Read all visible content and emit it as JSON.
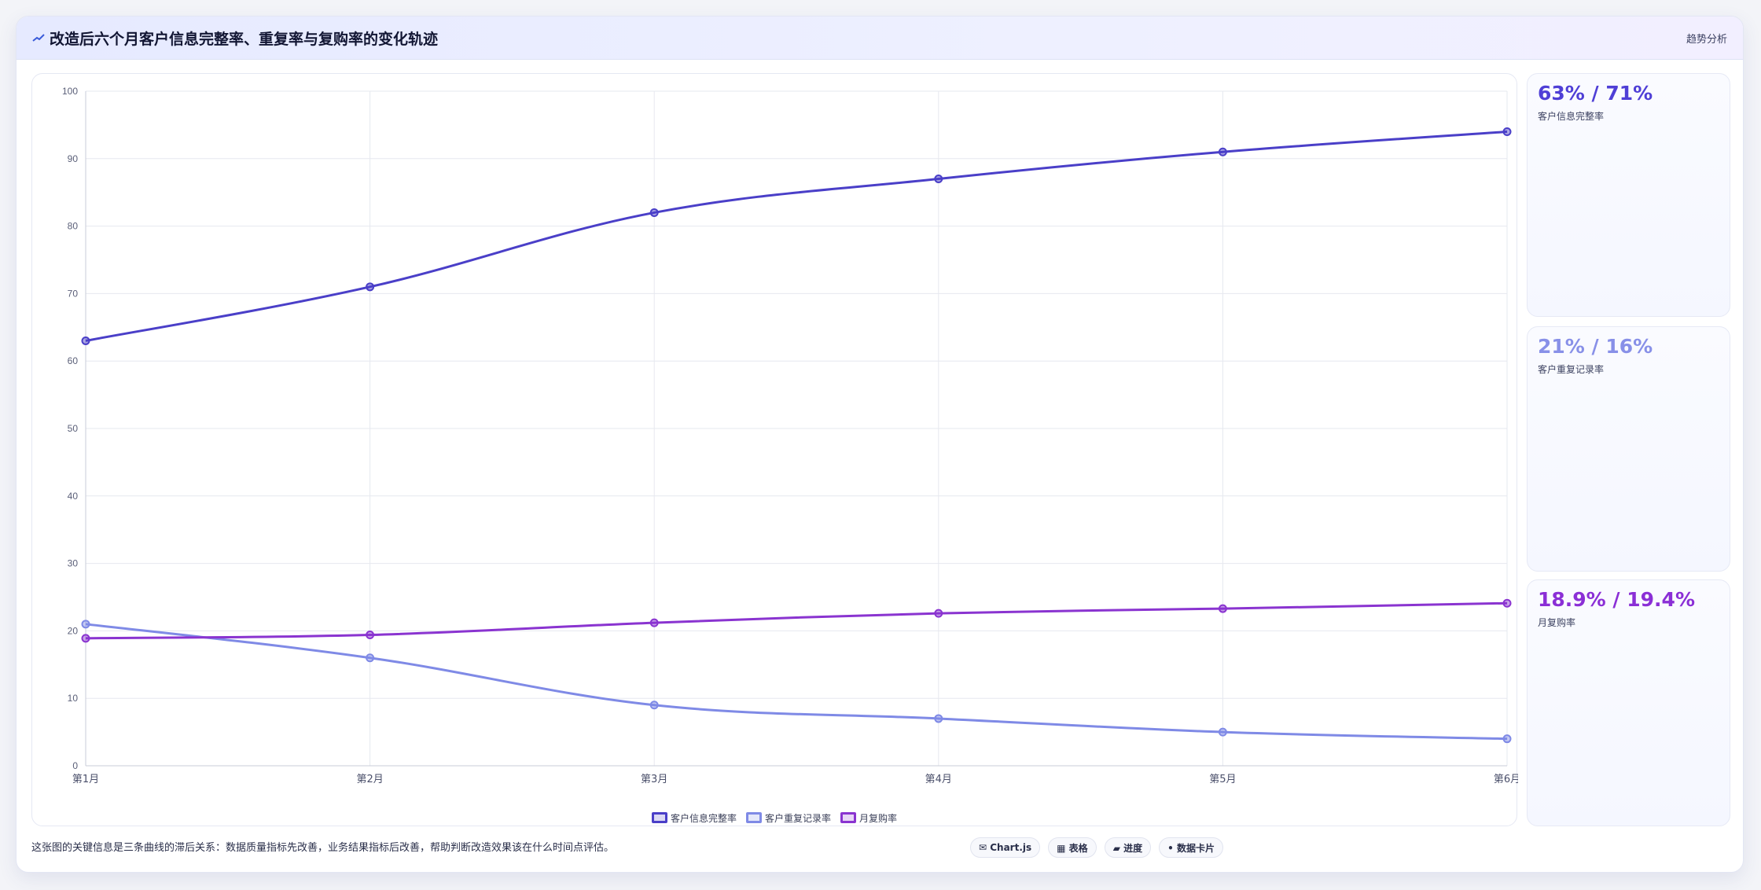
{
  "header": {
    "title": "改造后六个月客户信息完整率、重复率与复购率的变化轨迹",
    "tag": "趋势分析"
  },
  "colors": {
    "completeness": "#4a3fc8",
    "duplicate": "#7f8ae6",
    "repurchase": "#8a34d0"
  },
  "stats": [
    {
      "value": "63% / 71%",
      "label": "客户信息完整率",
      "color": "#4f3fd6"
    },
    {
      "value": "21% / 16%",
      "label": "客户重复记录率",
      "color": "#8890e8"
    },
    {
      "value": "18.9% / 19.4%",
      "label": "月复购率",
      "color": "#8b2fd6"
    }
  ],
  "footer": {
    "note": "这张图的关键信息是三条曲线的滞后关系：数据质量指标先改善，业务结果指标后改善，帮助判断改造效果该在什么时间点评估。",
    "chips": [
      "✉ Chart.js",
      "▦ 表格",
      "▰ 进度",
      "• 数据卡片"
    ]
  },
  "chart_data": {
    "type": "line",
    "categories": [
      "第1月",
      "第2月",
      "第3月",
      "第4月",
      "第5月",
      "第6月"
    ],
    "ylim": [
      0,
      100
    ],
    "yticks": [
      0,
      10,
      20,
      30,
      40,
      50,
      60,
      70,
      80,
      90,
      100
    ],
    "grid": true,
    "legend_position": "bottom",
    "series": [
      {
        "name": "客户信息完整率",
        "values": [
          63,
          71,
          82,
          87,
          91,
          94
        ],
        "color": "#4a3fc8"
      },
      {
        "name": "客户重复记录率",
        "values": [
          21,
          16,
          9,
          7,
          5,
          4
        ],
        "color": "#7f8ae6"
      },
      {
        "name": "月复购率",
        "values": [
          18.9,
          19.4,
          21.2,
          22.6,
          23.3,
          24.1
        ],
        "color": "#8a34d0"
      }
    ]
  }
}
